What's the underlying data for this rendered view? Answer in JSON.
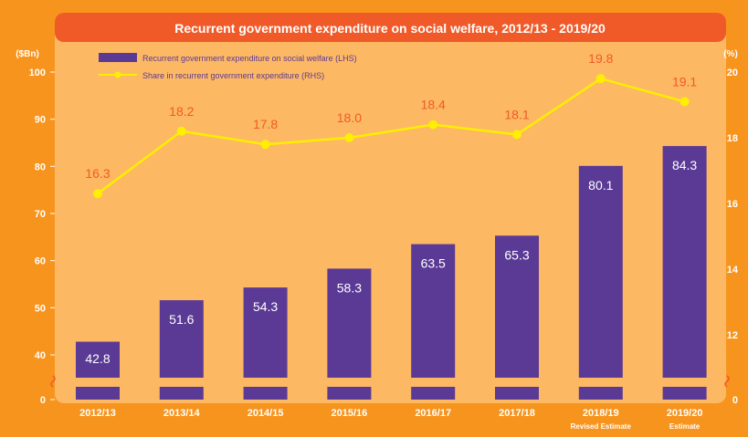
{
  "colors": {
    "outer": "#f7941d",
    "plot": "#fdb863",
    "title_bar": "#f05a28",
    "bar": "#5b3a96",
    "line": "#ffef00",
    "label": "#f05a28",
    "tick": "#ffffff"
  },
  "chart_data": {
    "type": "bar",
    "title": "Recurrent government expenditure on social welfare, 2012/13 - 2019/20",
    "categories": [
      "2012/13",
      "2013/14",
      "2014/15",
      "2015/16",
      "2016/17",
      "2017/18",
      "2018/19",
      "2019/20"
    ],
    "category_sublabels": [
      "",
      "",
      "",
      "",
      "",
      "",
      "Revised Estimate",
      "Estimate"
    ],
    "series": [
      {
        "name": "Recurrent government expenditure on social welfare (LHS)",
        "type": "bar",
        "axis": "left",
        "values": [
          42.8,
          51.6,
          54.3,
          58.3,
          63.5,
          65.3,
          80.1,
          84.3
        ]
      },
      {
        "name": "Share in recurrent government expenditure (RHS)",
        "type": "line",
        "axis": "right",
        "values": [
          16.3,
          18.2,
          17.8,
          18.0,
          18.4,
          18.1,
          19.8,
          19.1
        ]
      }
    ],
    "ylabel": "($Bn)",
    "y2label": "(%)",
    "ylim": [
      0,
      100
    ],
    "yticks": [
      "0",
      "40",
      "50",
      "60",
      "70",
      "80",
      "90",
      "100"
    ],
    "y2lim": [
      0,
      20
    ],
    "y2ticks": [
      "0",
      "12",
      "14",
      "16",
      "18",
      "20"
    ],
    "y_axis_break": true,
    "legend_position": "top-left",
    "grid": false
  }
}
